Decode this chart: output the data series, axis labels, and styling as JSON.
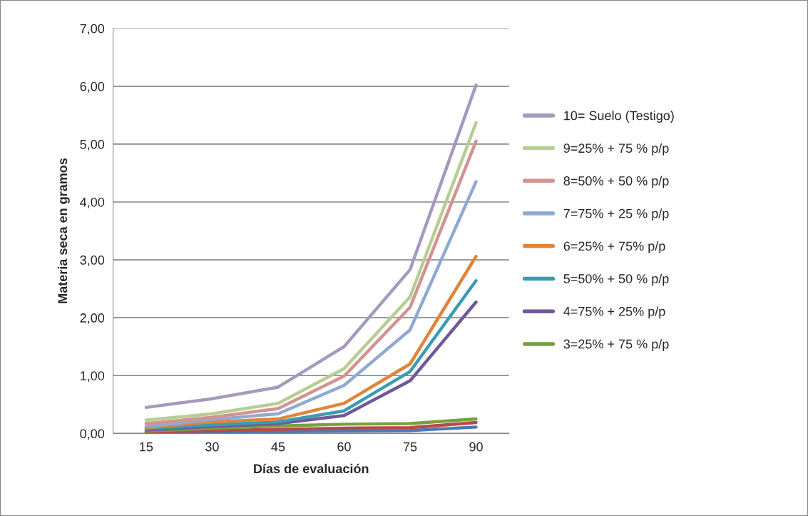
{
  "chart_data": {
    "type": "line",
    "xlabel": "Días de evaluación",
    "ylabel": "Materia seca en gramos",
    "categories": [
      "15",
      "30",
      "45",
      "60",
      "75",
      "90"
    ],
    "series": [
      {
        "name": "10= Suelo (Testigo)",
        "color": "#a699bd",
        "values": [
          0.45,
          0.6,
          0.8,
          1.5,
          2.83,
          6.02
        ]
      },
      {
        "name": "9=25% + 75 % p/p",
        "color": "#b7cd91",
        "values": [
          0.23,
          0.34,
          0.52,
          1.12,
          2.36,
          5.37
        ]
      },
      {
        "name": "8=50% + 50 % p/p",
        "color": "#d39390",
        "values": [
          0.17,
          0.28,
          0.43,
          0.99,
          2.18,
          5.05
        ]
      },
      {
        "name": "7=75% + 25 % p/p",
        "color": "#8fa9d1",
        "values": [
          0.12,
          0.24,
          0.34,
          0.83,
          1.79,
          4.35
        ]
      },
      {
        "name": "6=25% + 75% p/p",
        "color": "#e0843a",
        "values": [
          0.1,
          0.2,
          0.25,
          0.52,
          1.2,
          3.06
        ]
      },
      {
        "name": "5=50% + 50 % p/p",
        "color": "#3b9bb2",
        "values": [
          0.08,
          0.15,
          0.2,
          0.39,
          1.07,
          2.64
        ]
      },
      {
        "name": "4=75% + 25% p/p",
        "color": "#71589a",
        "values": [
          0.06,
          0.12,
          0.17,
          0.31,
          0.91,
          2.27
        ]
      },
      {
        "name": "3=25% + 75 % p/p",
        "color": "#77a040",
        "values": [
          0.04,
          0.09,
          0.13,
          0.16,
          0.17,
          0.25
        ]
      },
      {
        "color": "#b84a48",
        "values": [
          0.02,
          0.05,
          0.07,
          0.09,
          0.1,
          0.19
        ]
      },
      {
        "color": "#4a7ab6",
        "values": [
          0.01,
          0.02,
          0.03,
          0.04,
          0.05,
          0.11
        ]
      }
    ],
    "ylim": [
      0,
      7
    ],
    "yticks": [
      {
        "value": 0,
        "label": "0,00"
      },
      {
        "value": 1,
        "label": "1,00"
      },
      {
        "value": 2,
        "label": "2,00"
      },
      {
        "value": 3,
        "label": "3,00"
      },
      {
        "value": 4,
        "label": "4,00"
      },
      {
        "value": 5,
        "label": "5,00"
      },
      {
        "value": 6,
        "label": "6,00"
      },
      {
        "value": 7,
        "label": "7,00"
      }
    ],
    "grid": "y",
    "legend": "right",
    "marker": "none",
    "line_style": "solid"
  }
}
